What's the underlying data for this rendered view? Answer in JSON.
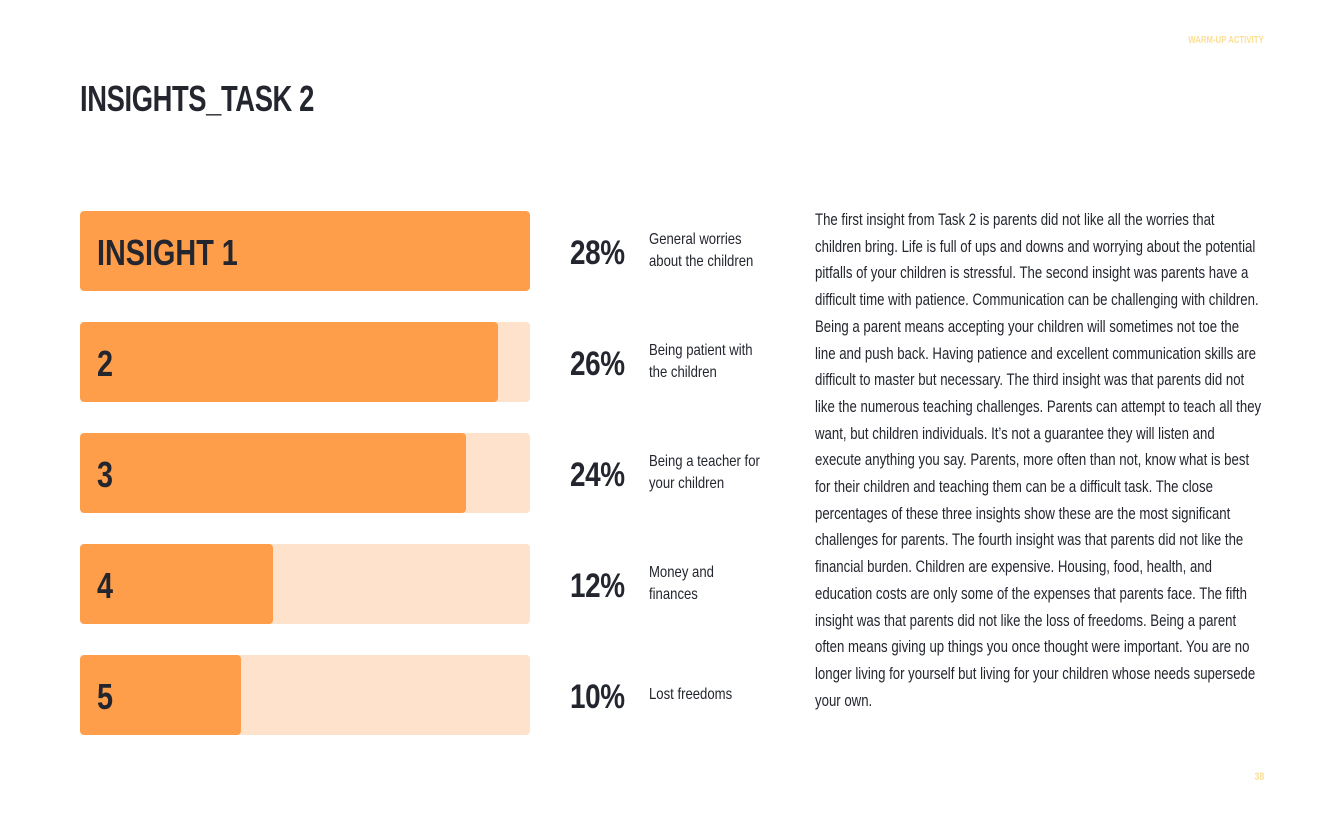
{
  "header": {
    "section_label": "WARM-UP ACTIVITY",
    "title": "INSIGHTS_TASK 2"
  },
  "chart_data": {
    "type": "bar",
    "orientation": "horizontal",
    "categories": [
      "INSIGHT 1",
      "2",
      "3",
      "4",
      "5"
    ],
    "values": [
      28,
      26,
      24,
      12,
      10
    ],
    "value_labels": [
      "28%",
      "26%",
      "24%",
      "12%",
      "10%"
    ],
    "descriptions": [
      "General worries about the children",
      "Being patient with the children",
      "Being a teacher for your children",
      "Money and finances",
      "Lost freedoms"
    ],
    "xlim": [
      0,
      28
    ],
    "colors": {
      "fill": "#ff9e4a",
      "track": "#ffe2cb"
    }
  },
  "body": {
    "text": "The first insight from Task 2 is parents did not like all the worries that children bring. Life is full of ups and downs and worrying about the potential pitfalls of your children is stressful. The second insight was parents have a difficult time with patience. Communication can be challenging with children. Being a parent means accepting your children will sometimes not toe the line and push back. Having patience and excellent communication skills are difficult to master but necessary. The third insight was that parents did not like the numerous teaching challenges. Parents can attempt to teach all they want, but children individuals. It’s not a guarantee they will listen and execute anything you say. Parents, more often than not, know what is best for their children and teaching them can be a difficult task. The close percentages of these three insights show these are the most significant challenges for parents. The fourth insight was that parents did not like the financial burden. Children are expensive. Housing, food, health, and education costs are only some of the expenses that parents face. The fifth insight was that parents did not like the loss of freedoms. Being a parent often means giving up things you once thought were important. You are no longer living for yourself but living for your children whose needs supersede your own."
  },
  "footer": {
    "page_number": "38"
  }
}
